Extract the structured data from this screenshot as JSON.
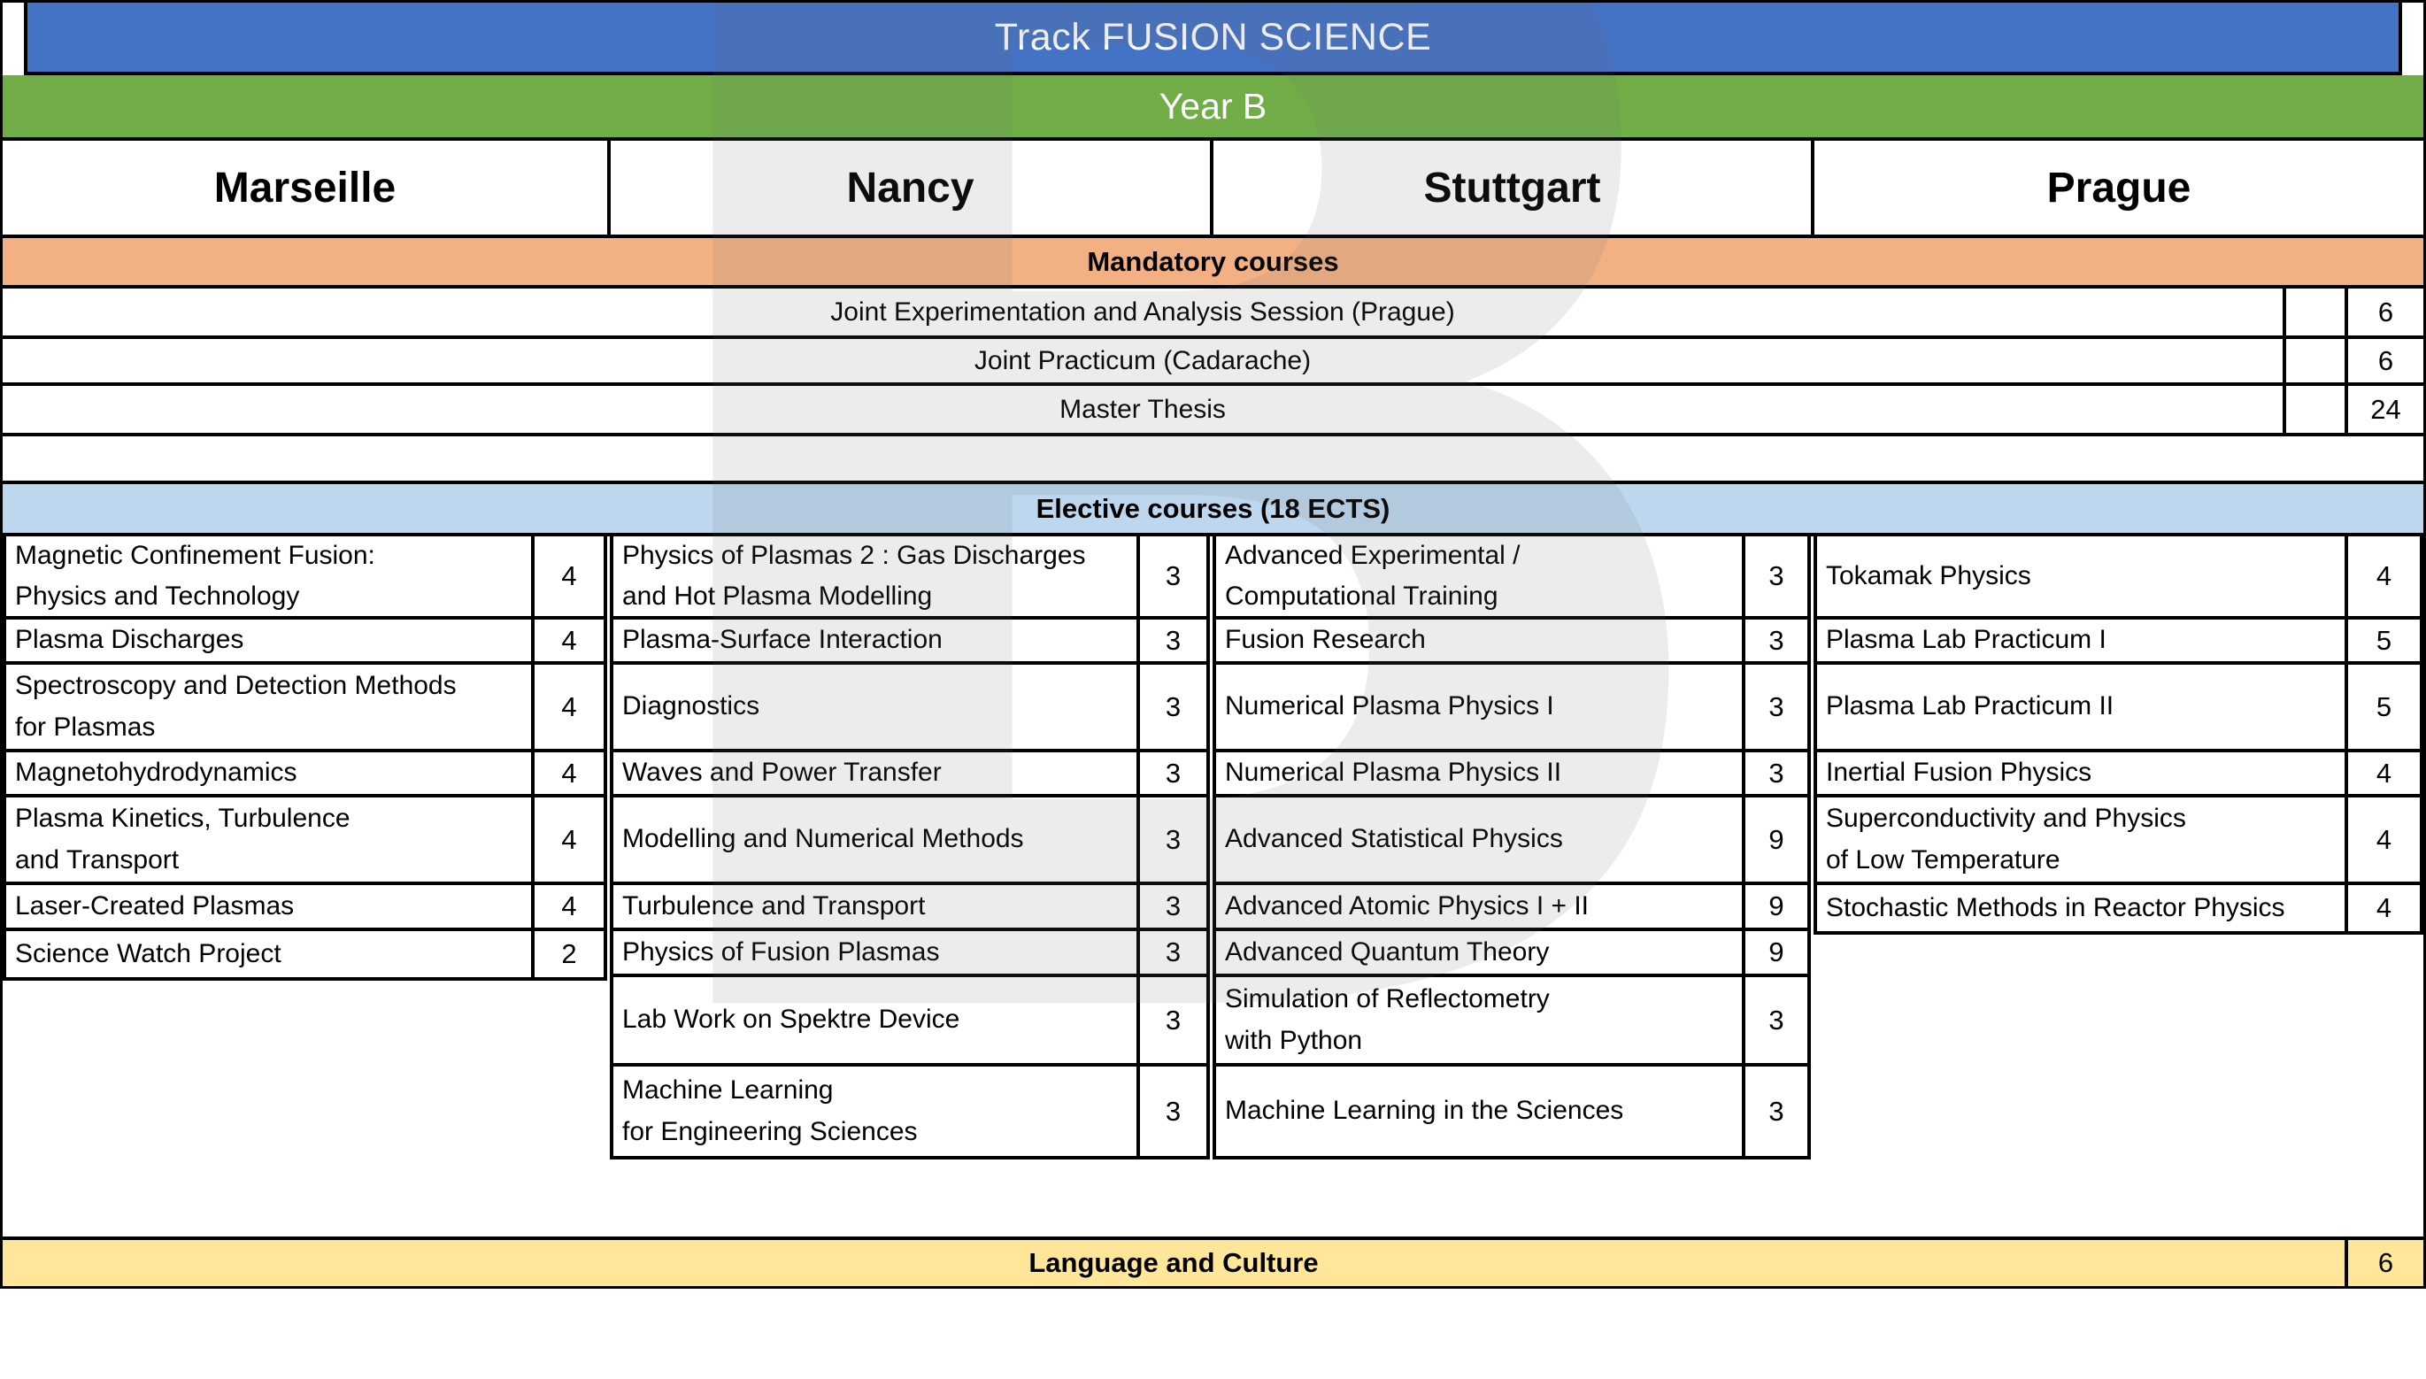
{
  "title": "Track FUSION SCIENCE",
  "year": "Year B",
  "cities": [
    "Marseille",
    "Nancy",
    "Stuttgart",
    "Prague"
  ],
  "mandatory": {
    "header": "Mandatory courses",
    "rows": [
      {
        "name": "Joint Experimentation and Analysis Session (Prague)",
        "ects": "6"
      },
      {
        "name": "Joint Practicum (Cadarache)",
        "ects": "6"
      },
      {
        "name": "Master Thesis",
        "ects": "24"
      }
    ]
  },
  "elective": {
    "header": "Elective courses (18 ECTS)",
    "columns": [
      {
        "city": "Marseille",
        "courses": [
          {
            "name": "Magnetic Confinement Fusion:\nPhysics and Technology",
            "ects": "4"
          },
          {
            "name": "Plasma Discharges",
            "ects": "4"
          },
          {
            "name": "Spectroscopy and Detection Methods\nfor Plasmas",
            "ects": "4"
          },
          {
            "name": "Magnetohydrodynamics",
            "ects": "4"
          },
          {
            "name": "Plasma Kinetics, Turbulence\nand Transport",
            "ects": "4"
          },
          {
            "name": "Laser-Created Plasmas",
            "ects": "4"
          },
          {
            "name": "Science Watch Project",
            "ects": "2"
          }
        ]
      },
      {
        "city": "Nancy",
        "courses": [
          {
            "name": "Physics of Plasmas 2 : Gas Discharges\nand Hot Plasma Modelling",
            "ects": "3"
          },
          {
            "name": "Plasma-Surface Interaction",
            "ects": "3"
          },
          {
            "name": "Diagnostics",
            "ects": "3"
          },
          {
            "name": "Waves and Power Transfer",
            "ects": "3"
          },
          {
            "name": "Modelling and Numerical Methods",
            "ects": "3"
          },
          {
            "name": "Turbulence and Transport",
            "ects": "3"
          },
          {
            "name": "Physics of Fusion Plasmas",
            "ects": "3"
          },
          {
            "name": "Lab Work on Spektre Device",
            "ects": "3"
          },
          {
            "name": "Machine Learning\nfor Engineering Sciences",
            "ects": "3"
          }
        ]
      },
      {
        "city": "Stuttgart",
        "courses": [
          {
            "name": "Advanced Experimental /\nComputational Training",
            "ects": "3"
          },
          {
            "name": "Fusion Research",
            "ects": "3"
          },
          {
            "name": "Numerical Plasma Physics I",
            "ects": "3"
          },
          {
            "name": "Numerical Plasma Physics II",
            "ects": "3"
          },
          {
            "name": "Advanced Statistical Physics",
            "ects": "9"
          },
          {
            "name": "Advanced Atomic Physics I + II",
            "ects": "9"
          },
          {
            "name": "Advanced Quantum Theory",
            "ects": "9"
          },
          {
            "name": "Simulation of Reflectometry\nwith Python",
            "ects": "3"
          },
          {
            "name": "Machine Learning in the Sciences",
            "ects": "3"
          }
        ]
      },
      {
        "city": "Prague",
        "courses": [
          {
            "name": "Tokamak Physics",
            "ects": "4"
          },
          {
            "name": "Plasma Lab Practicum I",
            "ects": "5"
          },
          {
            "name": "Plasma Lab Practicum II",
            "ects": "5"
          },
          {
            "name": "Inertial Fusion Physics",
            "ects": "4"
          },
          {
            "name": "Superconductivity and Physics\nof Low Temperature",
            "ects": "4"
          },
          {
            "name": "Stochastic Methods in Reactor Physics",
            "ects": "4"
          }
        ]
      }
    ]
  },
  "language": {
    "name": "Language and Culture",
    "ects": "6"
  },
  "watermark": "B",
  "colors": {
    "title_blue": "#4472C4",
    "year_green": "#70AD47",
    "mandatory_orange": "#F3B183",
    "elective_blue": "#BDD7EE",
    "language_yellow": "#FFE699",
    "border": "#000000"
  }
}
